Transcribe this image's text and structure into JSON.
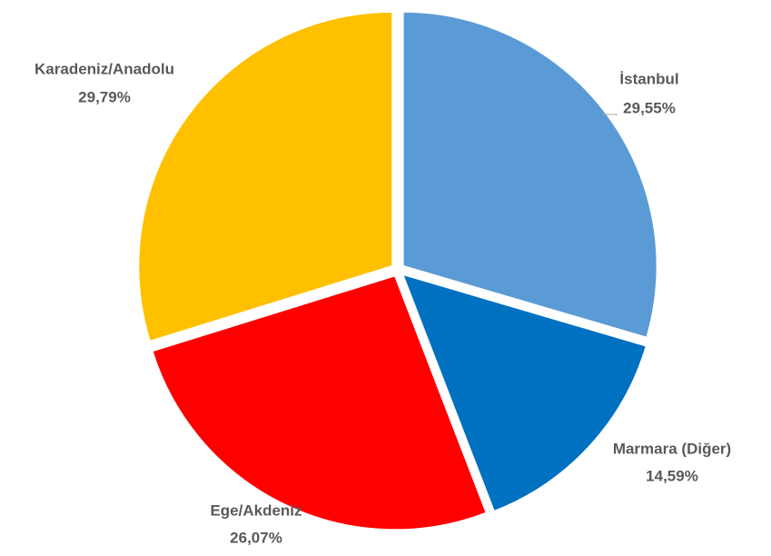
{
  "chart_data": {
    "type": "pie",
    "categories": [
      "İstanbul",
      "Marmara (Diğer)",
      "Ege/Akdeniz",
      "Karadeniz/Anadolu"
    ],
    "values": [
      29.55,
      14.59,
      26.07,
      29.79
    ],
    "value_labels": [
      "29,55%",
      "14,59%",
      "26,07%",
      "29,79%"
    ],
    "colors": [
      "#5b9bd5",
      "#0070c0",
      "#ff0000",
      "#ffc000"
    ]
  }
}
